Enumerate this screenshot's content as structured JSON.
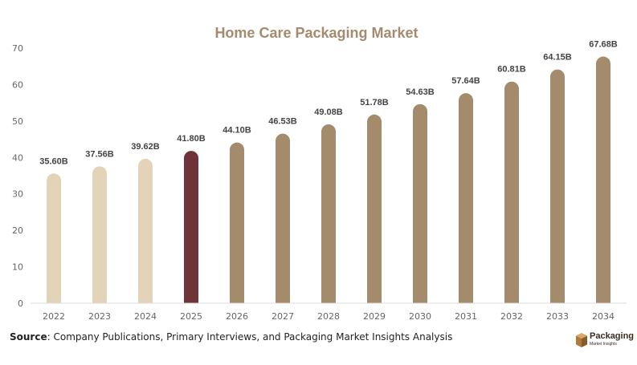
{
  "chart_data": {
    "type": "bar",
    "title": "Home Care Packaging Market",
    "categories": [
      "2022",
      "2023",
      "2024",
      "2025",
      "2026",
      "2027",
      "2028",
      "2029",
      "2030",
      "2031",
      "2032",
      "2033",
      "2034"
    ],
    "values": [
      35.6,
      37.56,
      39.62,
      41.8,
      44.1,
      46.53,
      49.08,
      51.78,
      54.63,
      57.64,
      60.81,
      64.15,
      67.68
    ],
    "data_labels": [
      "35.60B",
      "37.56B",
      "39.62B",
      "41.80B",
      "44.10B",
      "46.53B",
      "49.08B",
      "51.78B",
      "54.63B",
      "57.64B",
      "60.81B",
      "64.15B",
      "67.68B"
    ],
    "xlabel": "",
    "ylabel": "",
    "ylim": [
      0,
      70
    ],
    "yticks": [
      0,
      10,
      20,
      30,
      40,
      50,
      60,
      70
    ],
    "grid": false,
    "colors": {
      "historical": "#e3d3b8",
      "current": "#6e3437",
      "forecast": "#a38b6b",
      "title": "#a58b6e"
    },
    "bar_color_groups": [
      "historical",
      "historical",
      "historical",
      "current",
      "forecast",
      "forecast",
      "forecast",
      "forecast",
      "forecast",
      "forecast",
      "forecast",
      "forecast",
      "forecast"
    ]
  },
  "source": {
    "label": "Source",
    "text": ": Company Publications, Primary Interviews, and Packaging Market Insights Analysis"
  },
  "logo": {
    "name": "Packaging",
    "subtitle": "Market Insights",
    "icon": "box-icon"
  }
}
